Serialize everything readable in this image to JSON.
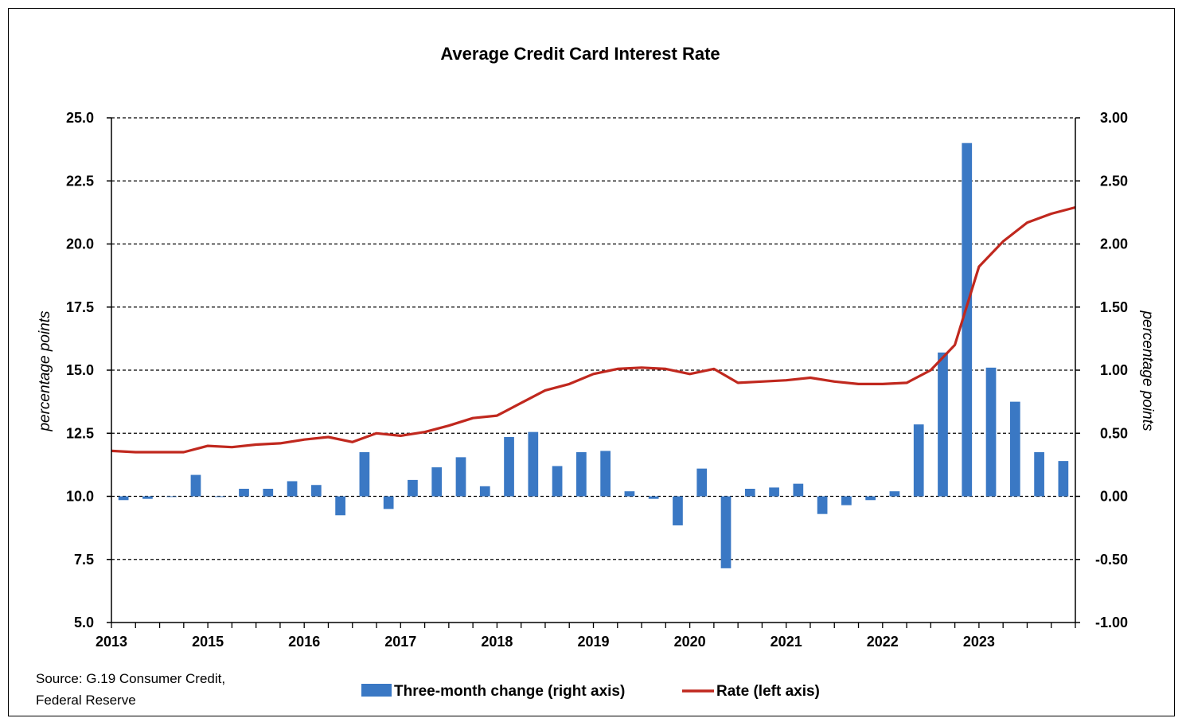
{
  "chart_data": {
    "type": "bar+line",
    "title": "Average Credit Card Interest Rate",
    "ylabel_left": "percentage points",
    "ylabel_right": "percentage points",
    "ylim_left": [
      5.0,
      25.0
    ],
    "ylim_right": [
      -1.0,
      3.0
    ],
    "yticks_left": [
      "25.0",
      "22.5",
      "20.0",
      "17.5",
      "15.0",
      "12.5",
      "10.0",
      "7.5",
      "5.0"
    ],
    "yticks_right": [
      "3.00",
      "2.50",
      "2.00",
      "1.50",
      "1.00",
      "0.50",
      "0.00",
      "-0.50",
      "-1.00"
    ],
    "x_tick_labels": [
      {
        "label": "2013",
        "q": 0
      },
      {
        "label": "2015",
        "q": 4
      },
      {
        "label": "2016",
        "q": 8
      },
      {
        "label": "2017",
        "q": 12
      },
      {
        "label": "2018",
        "q": 16
      },
      {
        "label": "2019",
        "q": 20
      },
      {
        "label": "2020",
        "q": 24
      },
      {
        "label": "2021",
        "q": 28
      },
      {
        "label": "2022",
        "q": 32
      },
      {
        "label": "2023",
        "q": 36
      }
    ],
    "grid": "horizontal dashed",
    "legend_placement": "bottom",
    "series": [
      {
        "name": "Three-month change (right axis)",
        "type": "bar",
        "axis": "right",
        "color": "#3a78c4",
        "values": [
          -0.03,
          -0.02,
          0.0,
          0.17,
          0.0,
          0.06,
          0.06,
          0.12,
          0.09,
          -0.15,
          0.35,
          -0.1,
          0.13,
          0.23,
          0.31,
          0.08,
          0.47,
          0.51,
          0.24,
          0.35,
          0.36,
          0.04,
          -0.02,
          -0.23,
          0.22,
          -0.57,
          0.06,
          0.07,
          0.1,
          -0.14,
          -0.07,
          -0.03,
          0.04,
          0.57,
          1.14,
          2.8,
          1.02,
          0.75,
          0.35,
          0.28
        ]
      },
      {
        "name": "Rate (left axis)",
        "type": "line",
        "axis": "left",
        "color": "#c0281e",
        "values": [
          11.8,
          11.75,
          11.75,
          11.75,
          12.0,
          11.95,
          12.05,
          12.1,
          12.25,
          12.35,
          12.15,
          12.5,
          12.4,
          12.55,
          12.8,
          13.1,
          13.2,
          13.7,
          14.2,
          14.45,
          14.85,
          15.05,
          15.1,
          15.05,
          14.85,
          15.05,
          14.5,
          14.55,
          14.6,
          14.7,
          14.55,
          14.45,
          14.45,
          14.5,
          15.0,
          16.0,
          19.1,
          20.1,
          20.85,
          21.2,
          21.45
        ]
      }
    ]
  },
  "source_line1": "Source: G.19 Consumer Credit,",
  "source_line2": "Federal Reserve",
  "colors": {
    "bar": "#3a78c4",
    "line": "#c0281e"
  }
}
